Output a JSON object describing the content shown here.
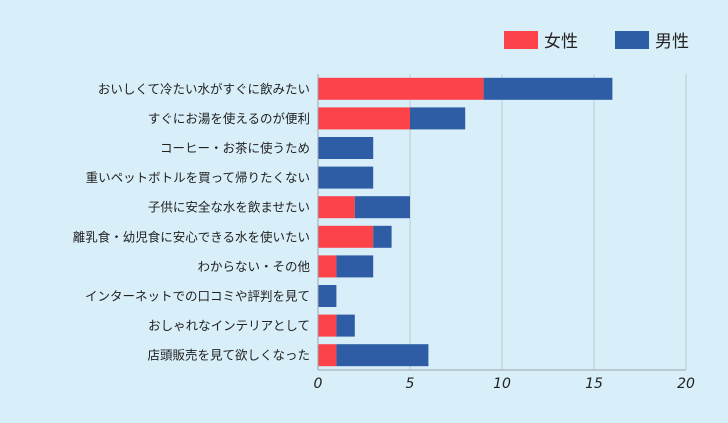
{
  "chart_data": {
    "type": "bar",
    "orientation": "horizontal",
    "stacked": true,
    "categories": [
      "おいしくて冷たい水がすぐに飲みたい",
      "すぐにお湯を使えるのが便利",
      "コーヒー・お茶に使うため",
      "重いペットボトルを買って帰りたくない",
      "子供に安全な水を飲ませたい",
      "離乳食・幼児食に安心できる水を使いたい",
      "わからない・その他",
      "インターネットでの口コミや評判を見て",
      "おしゃれなインテリアとして",
      "店頭販売を見て欲しくなった"
    ],
    "series": [
      {
        "name": "女性",
        "color": "#fc4349",
        "values": [
          9,
          5,
          0,
          0,
          2,
          3,
          1,
          0,
          1,
          1
        ]
      },
      {
        "name": "男性",
        "color": "#2f5da5",
        "values": [
          7,
          3,
          3,
          3,
          3,
          1,
          2,
          1,
          1,
          5
        ]
      }
    ],
    "xlim": [
      0,
      20
    ],
    "xticks": [
      "0",
      "5",
      "10",
      "15",
      "20"
    ],
    "grid": true,
    "legend_position": "top-right"
  }
}
